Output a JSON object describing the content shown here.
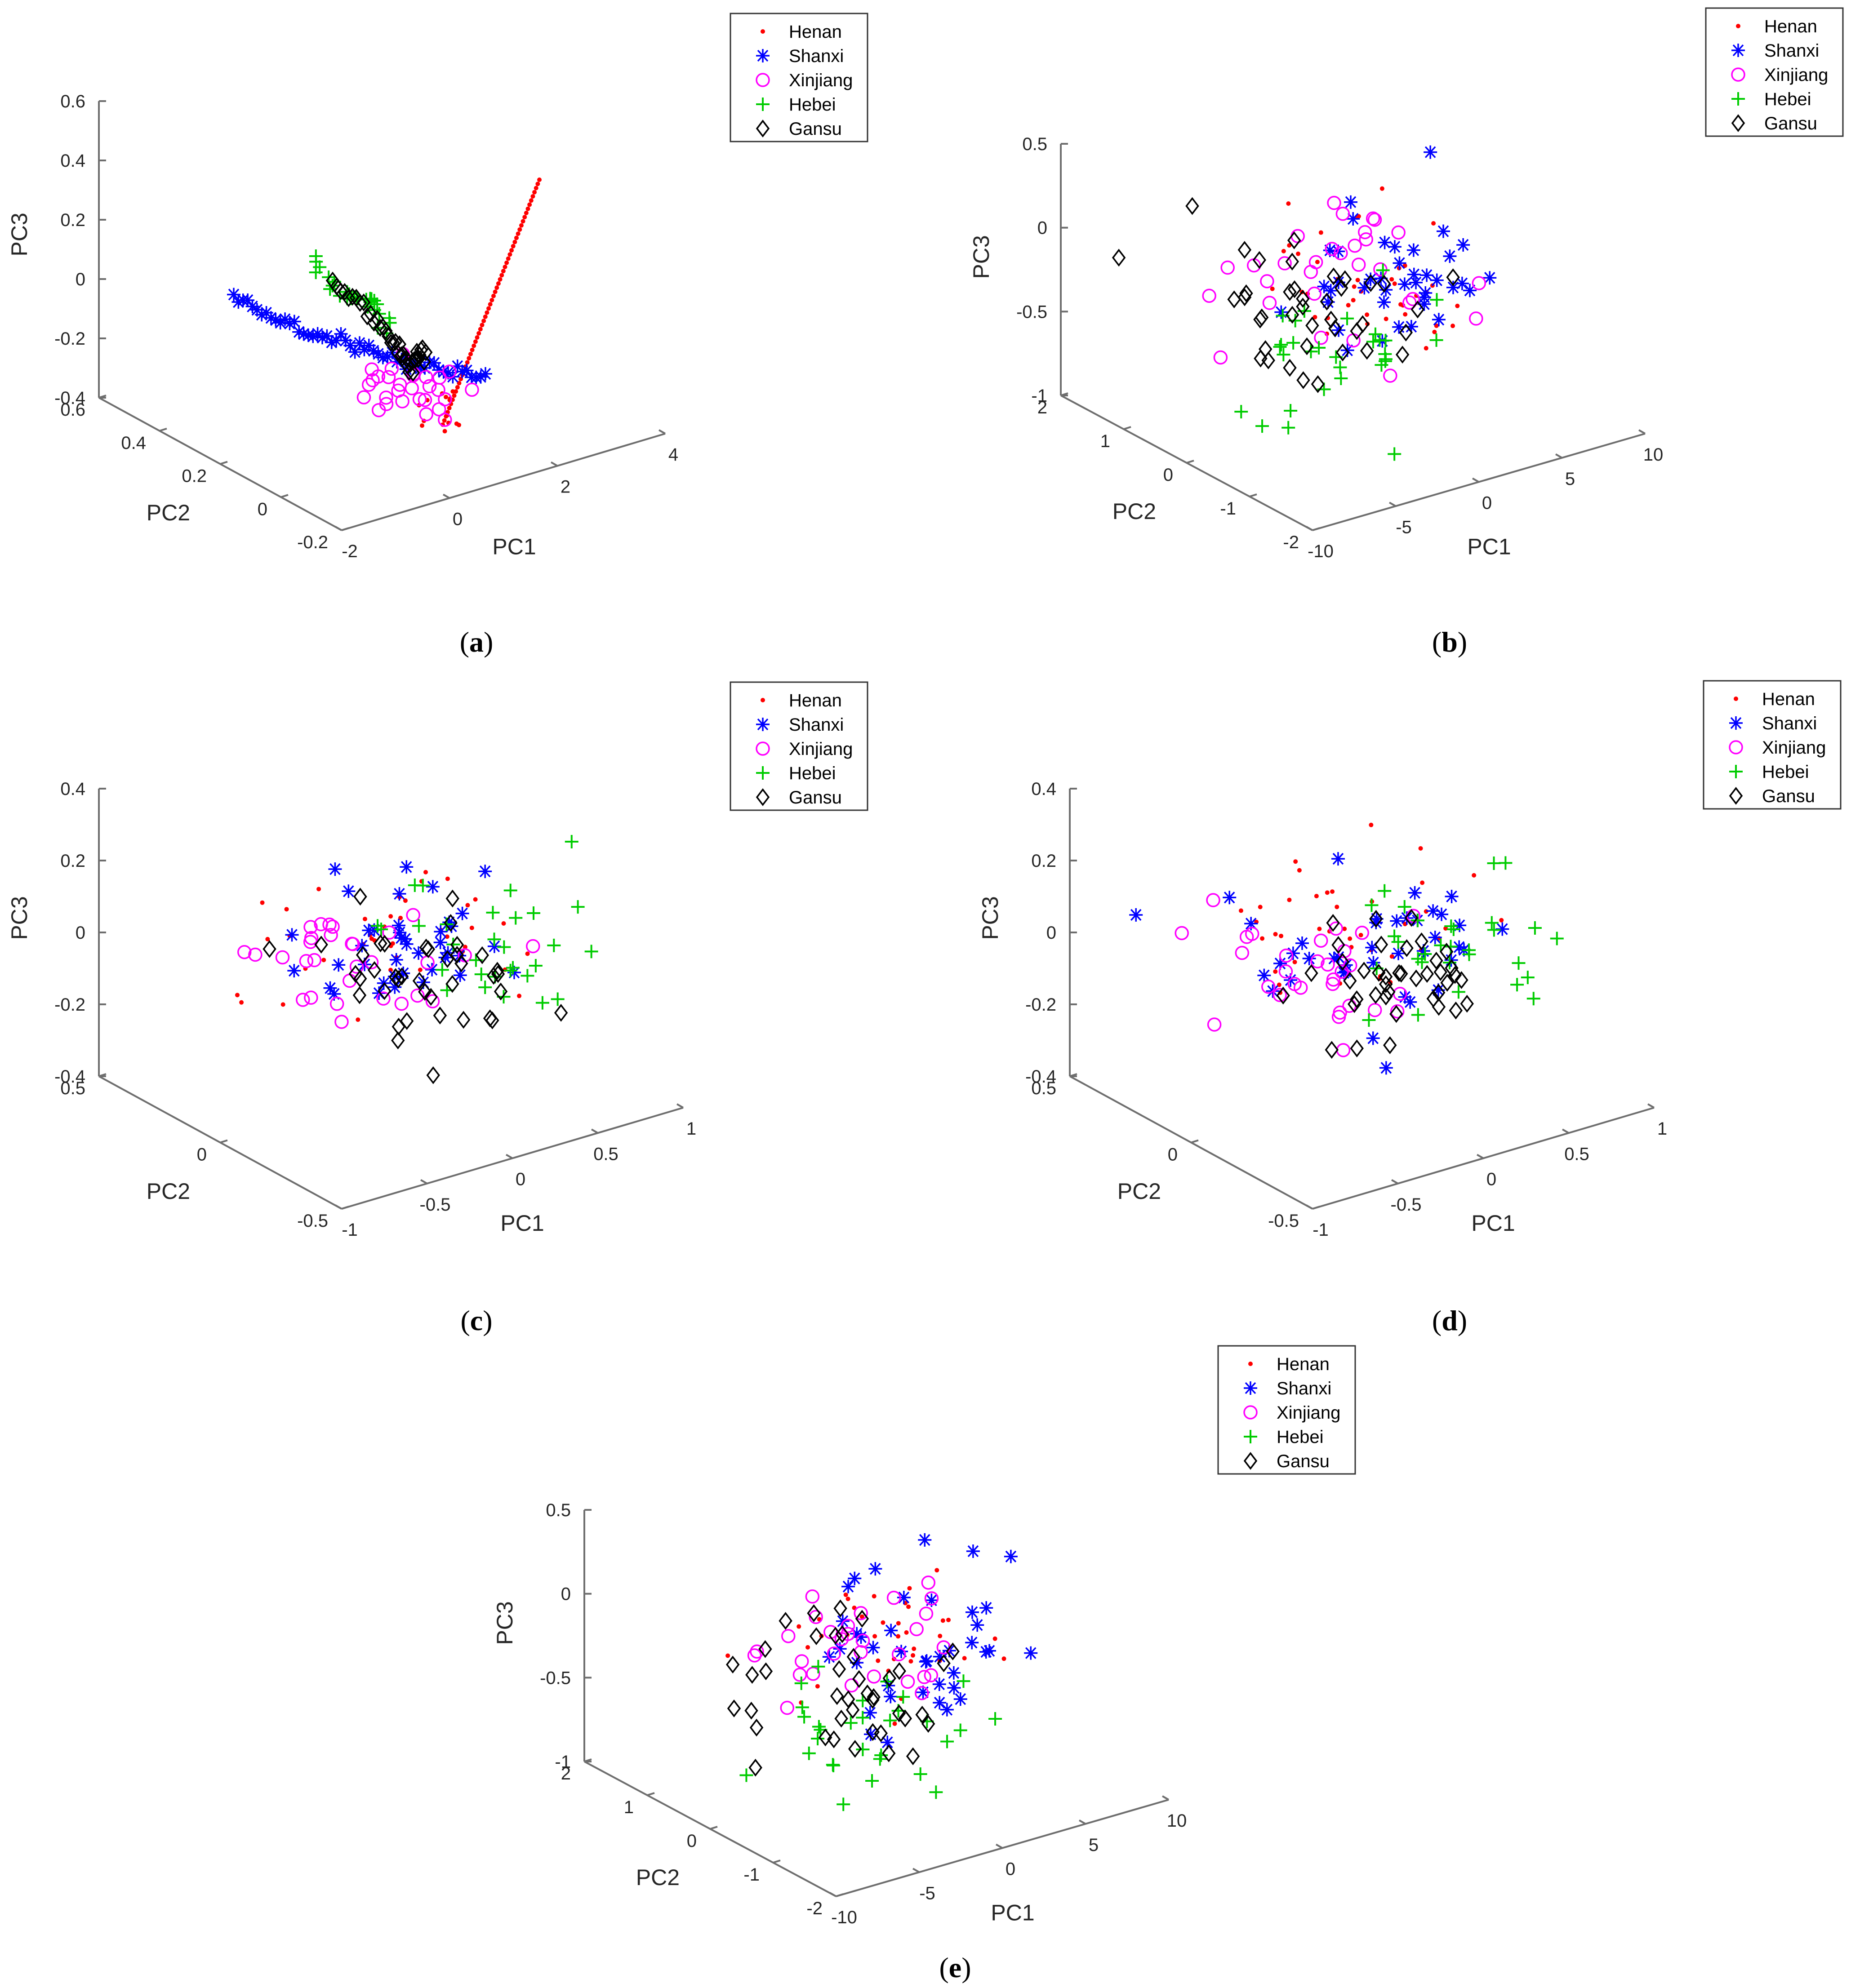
{
  "figure": {
    "captions": [
      "a",
      "b",
      "c",
      "d",
      "e"
    ]
  },
  "legend": {
    "entries": [
      {
        "name": "Henan",
        "color": "#ff0000",
        "marker": "dot"
      },
      {
        "name": "Shanxi",
        "color": "#0000ff",
        "marker": "asterisk"
      },
      {
        "name": "Xinjiang",
        "color": "#ff00ff",
        "marker": "circle"
      },
      {
        "name": "Hebei",
        "color": "#00cc00",
        "marker": "plus"
      },
      {
        "name": "Gansu",
        "color": "#000000",
        "marker": "diamond"
      }
    ]
  },
  "chart_data": [
    {
      "id": "a",
      "type": "scatter3d",
      "pattern": "trajectory",
      "xlabel": "PC1",
      "ylabel": "PC2",
      "zlabel": "PC3",
      "xlim": [
        -2,
        4
      ],
      "ylim": [
        -0.2,
        0.6
      ],
      "zlim": [
        -0.4,
        0.6
      ],
      "xticks": [
        "-2",
        "0",
        "2",
        "4"
      ],
      "yticks": [
        "-0.2",
        "0",
        "0.2",
        "0.4",
        "0.6"
      ],
      "zticks": [
        "-0.4",
        "-0.2",
        "0",
        "0.2",
        "0.4",
        "0.6"
      ],
      "legend_position": "top-right"
    },
    {
      "id": "b",
      "type": "scatter3d",
      "pattern": "cloud",
      "xlabel": "PC1",
      "ylabel": "PC2",
      "zlabel": "PC3",
      "xlim": [
        -10,
        10
      ],
      "ylim": [
        -2,
        2
      ],
      "zlim": [
        -1,
        0.5
      ],
      "xticks": [
        "-10",
        "-5",
        "0",
        "5",
        "10"
      ],
      "yticks": [
        "-2",
        "-1",
        "0",
        "1",
        "2"
      ],
      "zticks": [
        "-1",
        "-0.5",
        "0",
        "0.5"
      ],
      "legend_position": "top-right"
    },
    {
      "id": "c",
      "type": "scatter3d",
      "pattern": "cloud-small",
      "xlabel": "PC1",
      "ylabel": "PC2",
      "zlabel": "PC3",
      "xlim": [
        -1,
        1
      ],
      "ylim": [
        -0.5,
        0.5
      ],
      "zlim": [
        -0.4,
        0.4
      ],
      "xticks": [
        "-1",
        "-0.5",
        "0",
        "0.5",
        "1"
      ],
      "yticks": [
        "-0.5",
        "0",
        "0.5"
      ],
      "zticks": [
        "-0.4",
        "-0.2",
        "0",
        "0.2",
        "0.4"
      ],
      "legend_position": "top-right"
    },
    {
      "id": "d",
      "type": "scatter3d",
      "pattern": "cloud-small",
      "xlabel": "PC1",
      "ylabel": "PC2",
      "zlabel": "PC3",
      "xlim": [
        -1,
        1
      ],
      "ylim": [
        -0.5,
        0.5
      ],
      "zlim": [
        -0.4,
        0.4
      ],
      "xticks": [
        "-1",
        "-0.5",
        "0",
        "0.5",
        "1"
      ],
      "yticks": [
        "-0.5",
        "0",
        "0.5"
      ],
      "zticks": [
        "-0.4",
        "-0.2",
        "0",
        "0.2",
        "0.4"
      ],
      "legend_position": "top-right"
    },
    {
      "id": "e",
      "type": "scatter3d",
      "pattern": "cloud",
      "xlabel": "PC1",
      "ylabel": "PC2",
      "zlabel": "PC3",
      "xlim": [
        -10,
        10
      ],
      "ylim": [
        -2,
        2
      ],
      "zlim": [
        -1,
        0.5
      ],
      "xticks": [
        "-10",
        "-5",
        "0",
        "5",
        "10"
      ],
      "yticks": [
        "-2",
        "-1",
        "0",
        "1",
        "2"
      ],
      "zticks": [
        "-1",
        "-0.5",
        "0",
        "0.5"
      ],
      "legend_position": "top-right"
    }
  ]
}
